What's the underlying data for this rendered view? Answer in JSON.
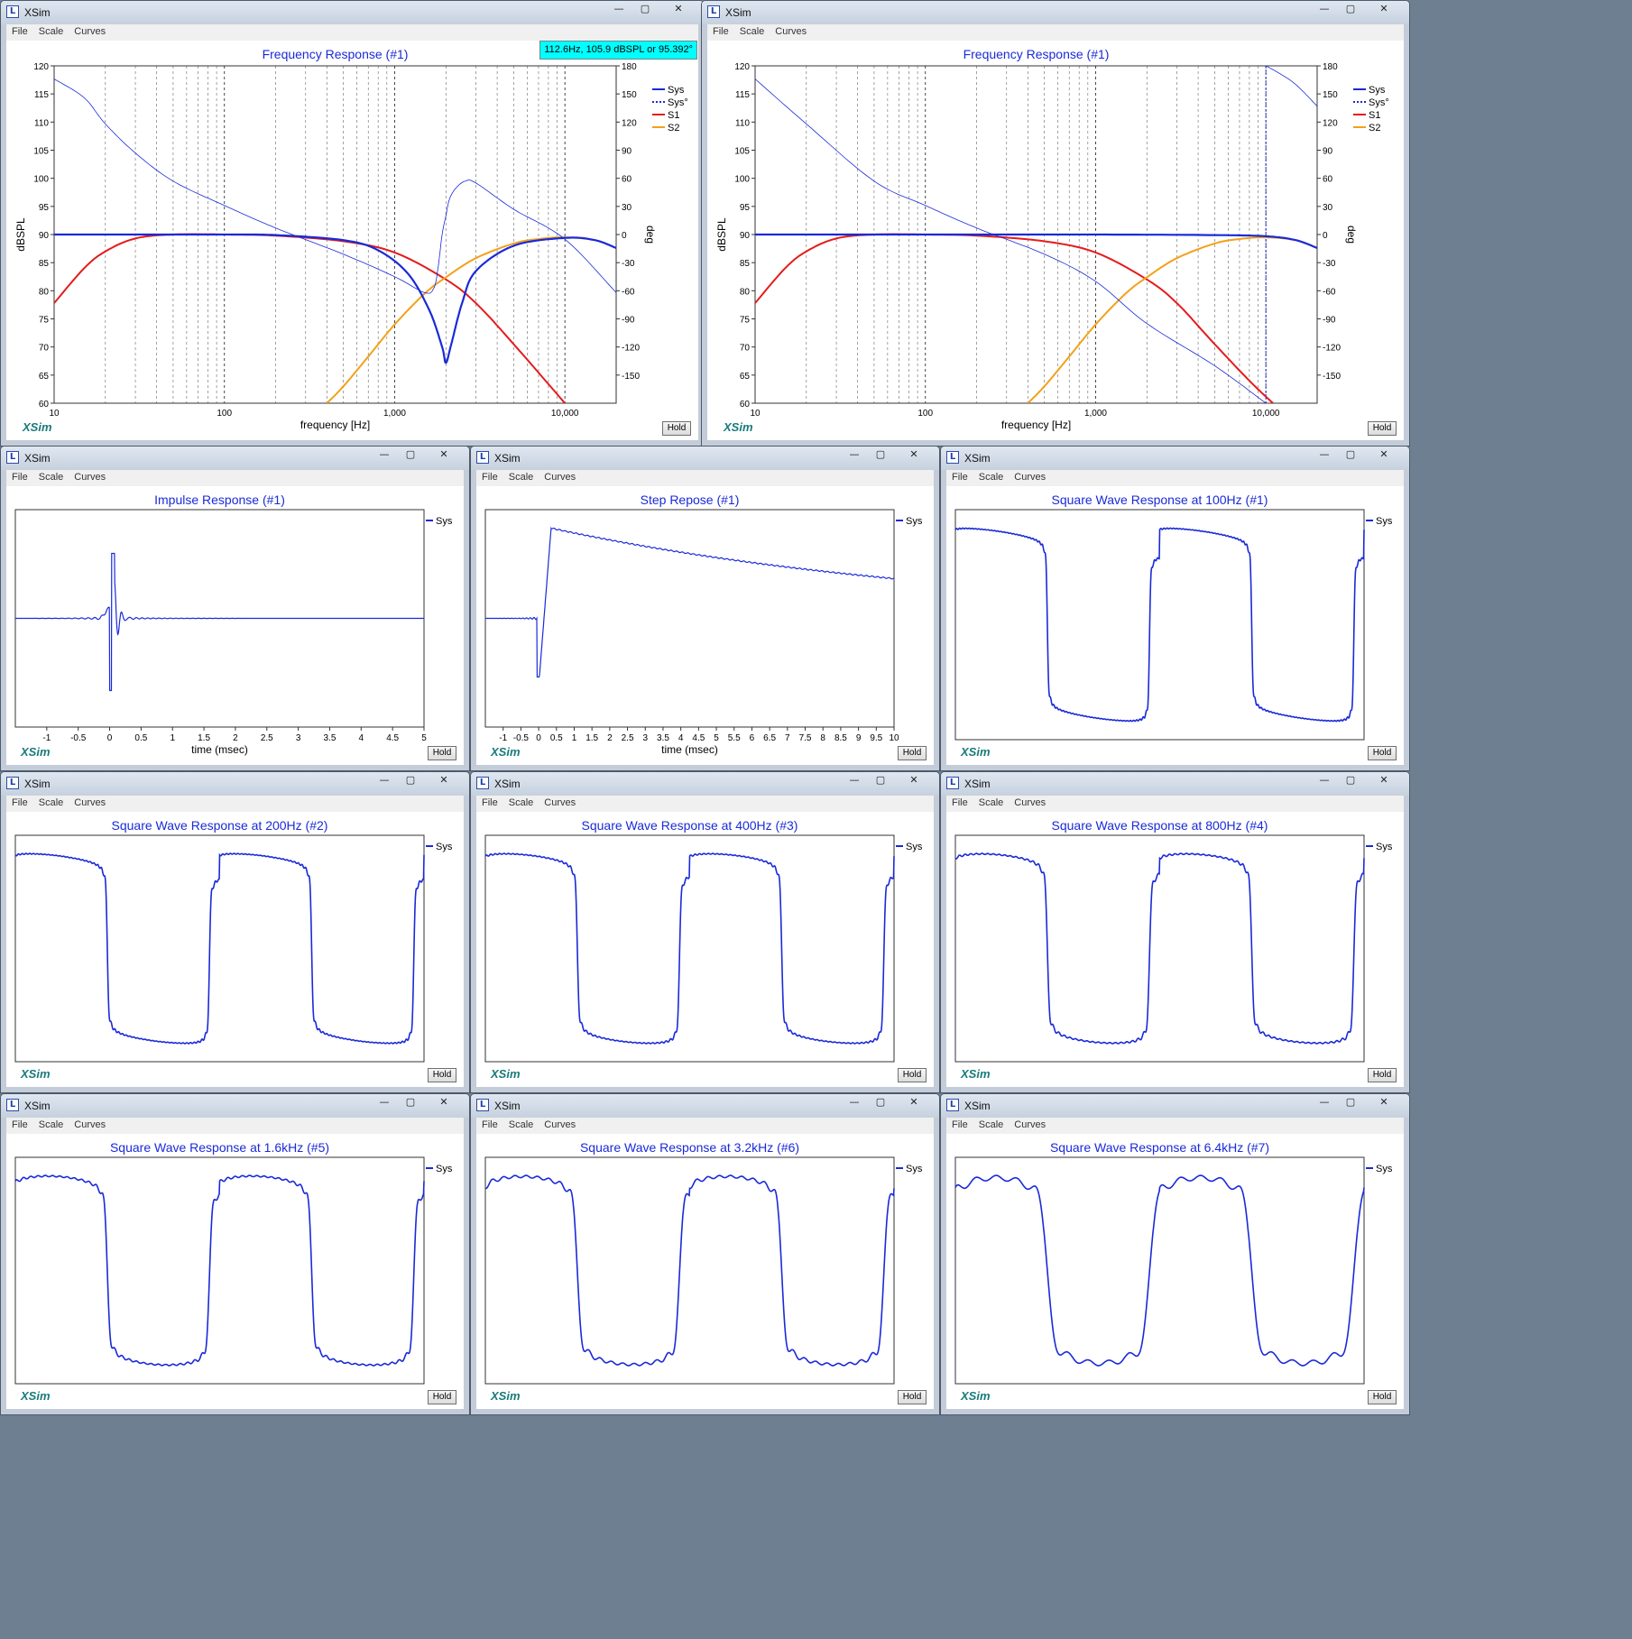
{
  "app": {
    "window_title": "XSim",
    "brand": "XSim",
    "hold_label": "Hold",
    "menu": [
      "File",
      "Scale",
      "Curves"
    ],
    "controls": [
      "—",
      "▢",
      "✕"
    ]
  },
  "colors": {
    "sys": "#1a2ad8",
    "s1": "#e41c1c",
    "s2": "#f2a11a"
  },
  "windows": [
    {
      "id": "fr1",
      "title": "Frequency Response (#1)",
      "tooltip": "112.6Hz, 105.9 dBSPL or 95.392°",
      "chart_data": {
        "type": "line",
        "xscale": "log",
        "xlim": [
          10,
          20000
        ],
        "xticks": [
          "10",
          "100",
          "1,000",
          "10,000"
        ],
        "xlabel": "frequency [Hz]",
        "ylabel": "dBSPL",
        "ylim": [
          60,
          120
        ],
        "yticks": [
          "60",
          "65",
          "70",
          "75",
          "80",
          "85",
          "90",
          "95",
          "100",
          "105",
          "110",
          "115",
          "120"
        ],
        "y2label": "deg",
        "y2lim": [
          -180,
          180
        ],
        "y2ticks": [
          "-150",
          "-120",
          "-90",
          "-60",
          "-30",
          "0",
          "30",
          "60",
          "90",
          "120",
          "150",
          "180"
        ],
        "legend": [
          "Sys",
          "Sys°",
          "S1",
          "S2"
        ],
        "legend_position": "top-right",
        "series": [
          {
            "name": "S1",
            "axis": "spl",
            "x": [
              10,
              15,
              20,
              30,
              50,
              100,
              200,
              500,
              1000,
              2000,
              3000,
              5000,
              10000
            ],
            "y": [
              77.8,
              84,
              87,
              89.3,
              90,
              90,
              89.8,
              88.8,
              86.8,
              82,
              77.8,
              70.5,
              60
            ]
          },
          {
            "name": "S2",
            "axis": "spl",
            "x": [
              400,
              500,
              700,
              1000,
              1500,
              2000,
              3000,
              5000,
              7000,
              10000,
              15000,
              20000
            ],
            "y": [
              60,
              63,
              68.3,
              74,
              79.5,
              82.4,
              85.8,
              88.4,
              89.2,
              89.5,
              89,
              87.6
            ]
          },
          {
            "name": "Sys",
            "axis": "spl",
            "x": [
              10,
              50,
              100,
              200,
              500,
              800,
              1200,
              1600,
              1900,
              2000,
              2150,
              2500,
              3000,
              5000,
              10000,
              15000,
              20000
            ],
            "y": [
              90,
              90,
              90,
              89.9,
              89,
              87.2,
              83,
              76.5,
              70,
              67.2,
              70.5,
              78,
              83.5,
              88,
              89.4,
              89,
              87.6
            ]
          },
          {
            "name": "Sys°",
            "axis": "phase",
            "x": [
              10,
              15,
              20,
              30,
              50,
              100,
              200,
              500,
              1000,
              1500,
              1700,
              1800,
              1900,
              2000,
              2100,
              2300,
              2600,
              3000,
              5000,
              10000,
              20000
            ],
            "y": [
              166,
              146,
              118,
              87,
              57,
              31,
              7,
              -21,
              -45,
              -62,
              -57,
              -35,
              0,
              20,
              38,
              50,
              57,
              55,
              27,
              -5,
              -62
            ]
          }
        ]
      }
    },
    {
      "id": "fr2",
      "title": "Frequency Response (#1)",
      "chart_data": {
        "type": "line",
        "xscale": "log",
        "xlim": [
          10,
          20000
        ],
        "xticks": [
          "10",
          "100",
          "1,000",
          "10,000"
        ],
        "xlabel": "frequency [Hz]",
        "ylabel": "dBSPL",
        "ylim": [
          60,
          120
        ],
        "yticks": [
          "60",
          "65",
          "70",
          "75",
          "80",
          "85",
          "90",
          "95",
          "100",
          "105",
          "110",
          "115",
          "120"
        ],
        "y2label": "deg",
        "y2lim": [
          -180,
          180
        ],
        "y2ticks": [
          "-150",
          "-120",
          "-90",
          "-60",
          "-30",
          "0",
          "30",
          "60",
          "90",
          "120",
          "150",
          "180"
        ],
        "legend": [
          "Sys",
          "Sys°",
          "S1",
          "S2"
        ],
        "legend_position": "top-right",
        "series": [
          {
            "name": "S1",
            "axis": "spl",
            "x": [
              10,
              15,
              20,
              30,
              50,
              100,
              200,
              500,
              1000,
              2000,
              3000,
              5000,
              8000,
              11000
            ],
            "y": [
              77.8,
              84,
              87,
              89.3,
              90,
              90,
              89.8,
              88.8,
              86.8,
              82,
              77.8,
              70.5,
              64,
              60
            ]
          },
          {
            "name": "S2",
            "axis": "spl",
            "x": [
              400,
              500,
              700,
              1000,
              1500,
              2000,
              3000,
              5000,
              7000,
              10000,
              15000,
              20000
            ],
            "y": [
              60,
              63,
              68.3,
              74,
              79.5,
              82.4,
              85.8,
              88.4,
              89.2,
              89.5,
              89,
              87.6
            ]
          },
          {
            "name": "Sys",
            "axis": "spl",
            "x": [
              10,
              100,
              1000,
              5000,
              10000,
              15000,
              20000
            ],
            "y": [
              90,
              90,
              90,
              89.9,
              89.7,
              89,
              87.6
            ]
          },
          {
            "name": "Sys°",
            "axis": "phase",
            "x": [
              10,
              20,
              50,
              100,
              200,
              500,
              1000,
              2000,
              5000,
              10000
            ],
            "y": [
              166,
              118,
              57,
              31,
              7,
              -21,
              -50,
              -95,
              -140,
              -180
            ]
          },
          {
            "name": "Sys°",
            "axis": "phase",
            "x": [
              10000,
              12000,
              15000,
              20000
            ],
            "y": [
              180,
              172,
              160,
              137
            ]
          }
        ]
      }
    },
    {
      "id": "imp",
      "title": "Impulse Response (#1)",
      "chart_data": {
        "type": "line",
        "xlabel": "time (msec)",
        "xlim": [
          -1.5,
          5
        ],
        "xticks": [
          "-1",
          "-0.5",
          "0",
          "0.5",
          "1",
          "1.5",
          "2",
          "2.5",
          "3",
          "3.5",
          "4",
          "4.5",
          "5"
        ],
        "legend": [
          "Sys"
        ],
        "series": [
          {
            "name": "Sys",
            "wave": "impulse"
          }
        ]
      }
    },
    {
      "id": "step",
      "title": "Step Repose (#1)",
      "chart_data": {
        "type": "line",
        "xlabel": "time (msec)",
        "xlim": [
          -1.5,
          10
        ],
        "xticks": [
          "-1",
          "-0.5",
          "0",
          "0.5",
          "1",
          "1.5",
          "2",
          "2.5",
          "3",
          "3.5",
          "4",
          "4.5",
          "5",
          "5.5",
          "6",
          "6.5",
          "7",
          "7.5",
          "8",
          "8.5",
          "9",
          "9.5",
          "10"
        ],
        "legend": [
          "Sys"
        ],
        "series": [
          {
            "name": "Sys",
            "wave": "step"
          }
        ]
      }
    },
    {
      "id": "sq100",
      "title": "Square Wave Response at 100Hz (#1)",
      "chart_data": {
        "type": "line",
        "legend": [
          "Sys"
        ],
        "series": [
          {
            "name": "Sys",
            "wave": "square",
            "sharp": 1.0
          }
        ]
      }
    },
    {
      "id": "sq200",
      "title": "Square Wave Response at 200Hz (#2)",
      "chart_data": {
        "type": "line",
        "legend": [
          "Sys"
        ],
        "series": [
          {
            "name": "Sys",
            "wave": "square",
            "sharp": 0.85
          }
        ]
      }
    },
    {
      "id": "sq400",
      "title": "Square Wave Response at 400Hz (#3)",
      "chart_data": {
        "type": "line",
        "legend": [
          "Sys"
        ],
        "series": [
          {
            "name": "Sys",
            "wave": "square",
            "sharp": 0.7
          }
        ]
      }
    },
    {
      "id": "sq800",
      "title": "Square Wave Response at 800Hz (#4)",
      "chart_data": {
        "type": "line",
        "legend": [
          "Sys"
        ],
        "series": [
          {
            "name": "Sys",
            "wave": "square",
            "sharp": 0.55
          }
        ]
      }
    },
    {
      "id": "sq1k6",
      "title": "Square Wave Response at 1.6kHz (#5)",
      "chart_data": {
        "type": "line",
        "legend": [
          "Sys"
        ],
        "series": [
          {
            "name": "Sys",
            "wave": "square",
            "sharp": 0.4
          }
        ]
      }
    },
    {
      "id": "sq3k2",
      "title": "Square Wave Response at 3.2kHz (#6)",
      "chart_data": {
        "type": "line",
        "legend": [
          "Sys"
        ],
        "series": [
          {
            "name": "Sys",
            "wave": "square",
            "sharp": 0.25
          }
        ]
      }
    },
    {
      "id": "sq6k4",
      "title": "Square Wave Response at 6.4kHz (#7)",
      "chart_data": {
        "type": "line",
        "legend": [
          "Sys"
        ],
        "series": [
          {
            "name": "Sys",
            "wave": "square",
            "sharp": 0.1
          }
        ]
      }
    }
  ]
}
